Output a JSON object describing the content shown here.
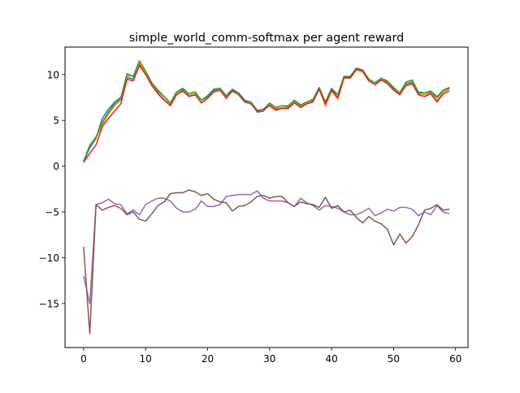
{
  "chart_data": {
    "type": "line",
    "title": "simple_world_comm-softmax per agent reward",
    "xlabel": "",
    "ylabel": "",
    "xlim": [
      -3,
      62
    ],
    "ylim": [
      -19.8,
      13
    ],
    "xticks": [
      0,
      10,
      20,
      30,
      40,
      50,
      60
    ],
    "yticks": [
      -15,
      -10,
      -5,
      0,
      5,
      10
    ],
    "grid": false,
    "legend": "none",
    "series": [
      {
        "color": "#1f77b4",
        "values": [
          0.5,
          2.0,
          3.0,
          5.2,
          6.2,
          7.0,
          7.5,
          9.7,
          9.5,
          11.2,
          10.3,
          9.0,
          8.2,
          7.6,
          6.9,
          8.1,
          8.5,
          7.9,
          8.1,
          7.2,
          7.7,
          8.4,
          8.5,
          7.7,
          8.4,
          8.0,
          7.2,
          7.0,
          5.9,
          6.0,
          6.8,
          6.2,
          6.4,
          6.4,
          7.1,
          6.6,
          7.0,
          7.2,
          8.5,
          7.0,
          8.5,
          7.8,
          9.8,
          9.8,
          10.7,
          10.5,
          9.5,
          9.1,
          9.6,
          9.2,
          8.5,
          8.0,
          9.0,
          9.2,
          8.0,
          8.0,
          8.1,
          7.5,
          8.3,
          8.6
        ]
      },
      {
        "color": "#ff7f0e",
        "values": [
          0.6,
          2.2,
          3.1,
          4.5,
          5.7,
          6.6,
          7.2,
          9.9,
          9.8,
          11.3,
          10.2,
          8.9,
          8.0,
          7.3,
          6.7,
          7.9,
          8.3,
          7.7,
          7.9,
          6.9,
          7.5,
          8.2,
          8.4,
          7.5,
          8.2,
          7.8,
          7.0,
          6.8,
          6.0,
          6.2,
          6.7,
          6.3,
          6.4,
          6.5,
          7.0,
          6.5,
          6.9,
          7.1,
          8.4,
          6.6,
          8.2,
          7.3,
          9.6,
          9.6,
          10.5,
          10.3,
          9.3,
          8.9,
          9.4,
          9.1,
          8.3,
          7.8,
          8.9,
          9.1,
          7.9,
          7.8,
          8.0,
          7.2,
          8.1,
          8.4
        ]
      },
      {
        "color": "#2ca02c",
        "values": [
          0.5,
          2.3,
          3.2,
          4.8,
          5.9,
          6.8,
          7.4,
          10.1,
          9.8,
          11.5,
          10.4,
          9.1,
          8.3,
          7.6,
          6.9,
          8.1,
          8.4,
          7.9,
          8.1,
          7.2,
          7.6,
          8.3,
          8.5,
          7.7,
          8.3,
          8.0,
          7.1,
          7.0,
          6.1,
          6.2,
          6.9,
          6.4,
          6.6,
          6.6,
          7.2,
          6.7,
          7.0,
          7.3,
          8.6,
          7.0,
          8.4,
          7.8,
          9.8,
          9.7,
          10.7,
          10.5,
          9.5,
          9.1,
          9.6,
          9.3,
          8.6,
          8.0,
          9.2,
          9.4,
          8.1,
          8.0,
          8.2,
          7.6,
          8.3,
          8.5
        ]
      },
      {
        "color": "#d62728",
        "values": [
          0.4,
          1.4,
          2.3,
          4.3,
          5.2,
          6.0,
          6.8,
          9.5,
          9.3,
          11.0,
          10.0,
          8.8,
          7.9,
          7.2,
          6.6,
          7.8,
          8.2,
          7.6,
          7.8,
          6.9,
          7.4,
          8.1,
          8.3,
          7.4,
          8.2,
          7.8,
          7.0,
          6.8,
          6.0,
          6.2,
          6.6,
          6.1,
          6.3,
          6.3,
          6.9,
          6.4,
          6.8,
          7.0,
          8.4,
          6.8,
          8.3,
          7.5,
          9.7,
          9.6,
          10.6,
          10.4,
          9.3,
          8.9,
          9.4,
          9.0,
          8.3,
          7.8,
          8.8,
          9.0,
          7.8,
          7.6,
          7.9,
          7.0,
          7.9,
          8.2
        ]
      },
      {
        "color": "#9467bd",
        "values": [
          -12.0,
          -15.0,
          -4.2,
          -4.0,
          -3.6,
          -4.1,
          -4.2,
          -5.2,
          -4.8,
          -5.3,
          -4.2,
          -3.8,
          -3.5,
          -3.5,
          -3.8,
          -4.6,
          -5.0,
          -5.0,
          -4.7,
          -3.8,
          -4.4,
          -4.4,
          -4.2,
          -3.3,
          -3.2,
          -3.1,
          -3.1,
          -3.1,
          -2.7,
          -3.5,
          -3.8,
          -3.8,
          -3.8,
          -4.0,
          -4.4,
          -3.5,
          -4.0,
          -4.3,
          -4.8,
          -4.3,
          -4.4,
          -4.6,
          -5.0,
          -5.3,
          -5.3,
          -5.0,
          -4.6,
          -5.4,
          -5.1,
          -4.7,
          -4.9,
          -4.5,
          -4.5,
          -4.7,
          -5.4,
          -5.0,
          -5.3,
          -4.3,
          -5.0,
          -5.2
        ]
      },
      {
        "color": "#8c564b",
        "values": [
          -8.8,
          -18.3,
          -4.2,
          -4.8,
          -4.5,
          -4.3,
          -4.6,
          -5.3,
          -5.0,
          -5.8,
          -6.0,
          -5.2,
          -4.3,
          -3.9,
          -3.0,
          -2.9,
          -2.9,
          -2.6,
          -2.8,
          -3.2,
          -3.0,
          -3.6,
          -3.9,
          -4.0,
          -4.9,
          -4.4,
          -4.3,
          -3.9,
          -3.3,
          -3.2,
          -3.5,
          -3.3,
          -3.3,
          -4.0,
          -4.4,
          -3.9,
          -4.1,
          -4.2,
          -4.5,
          -3.4,
          -4.6,
          -4.3,
          -5.0,
          -4.8,
          -5.6,
          -6.2,
          -5.5,
          -6.0,
          -6.3,
          -6.9,
          -8.6,
          -7.4,
          -8.4,
          -7.7,
          -6.4,
          -4.8,
          -4.6,
          -4.2,
          -4.8,
          -4.7
        ]
      }
    ]
  }
}
